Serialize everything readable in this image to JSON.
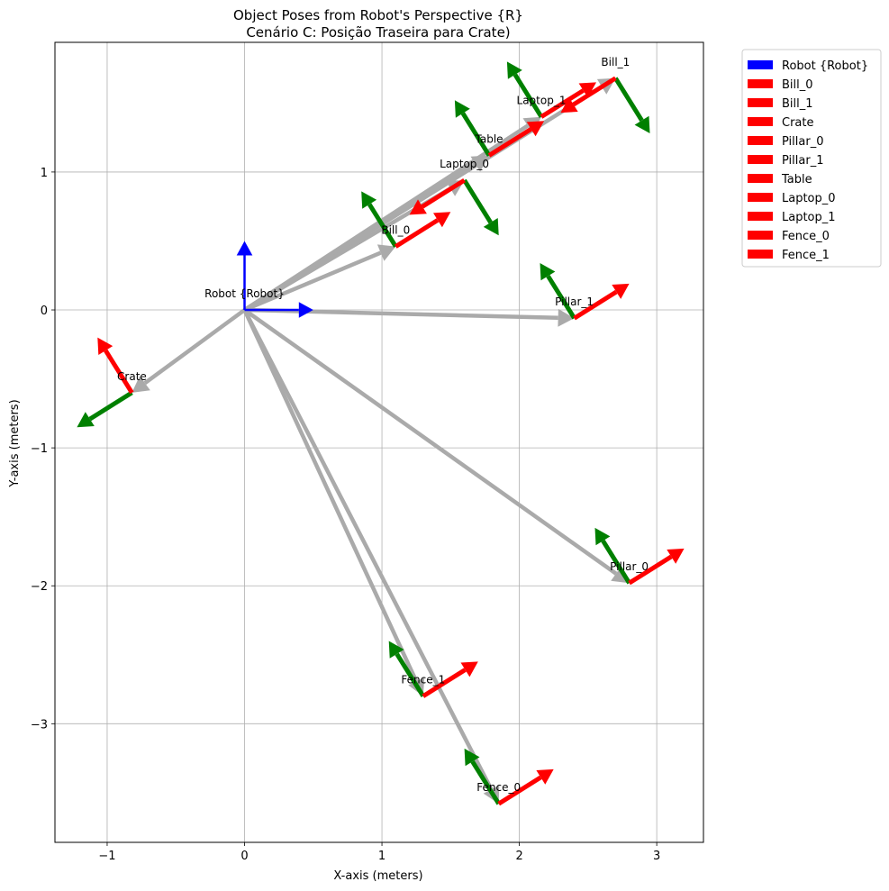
{
  "chart_data": {
    "type": "quiver",
    "title_line1": "Object Poses from Robot's Perspective {R}",
    "title_line2": "Cenário C: Posição Traseira para Crate)",
    "xlabel": "X-axis (meters)",
    "ylabel": "Y-axis (meters)",
    "xlim": [
      -1.38,
      3.34
    ],
    "ylim": [
      -3.86,
      1.94
    ],
    "xticks": [
      -1,
      0,
      1,
      2,
      3
    ],
    "xtick_labels": [
      "−1",
      "0",
      "1",
      "2",
      "3"
    ],
    "yticks": [
      -3,
      -2,
      -1,
      0,
      1
    ],
    "ytick_labels": [
      "−3",
      "−2",
      "−1",
      "0",
      "1"
    ],
    "grid": true,
    "legend_position": "outside-top-right",
    "colors": {
      "robot": "#0000ff",
      "x_axis": "#ff0000",
      "y_axis": "#008000",
      "connector": "#aaaaaa"
    },
    "robot": {
      "name": "Robot {Robot}",
      "label": "Robot {Robot}",
      "x": 0,
      "y": 0,
      "x_dir": [
        0.5,
        0
      ],
      "y_dir": [
        0,
        0.5
      ]
    },
    "objects": [
      {
        "name": "Bill_0",
        "label": "Bill_0",
        "x": 1.1,
        "y": 0.46,
        "x_dir": [
          0.4,
          0.25
        ],
        "y_dir": [
          -0.25,
          0.4
        ]
      },
      {
        "name": "Bill_1",
        "label": "Bill_1",
        "x": 2.7,
        "y": 1.68,
        "x_dir": [
          -0.4,
          -0.25
        ],
        "y_dir": [
          0.25,
          -0.4
        ]
      },
      {
        "name": "Crate",
        "label": "Crate",
        "x": -0.82,
        "y": -0.6,
        "x_dir": [
          -0.25,
          0.4
        ],
        "y_dir": [
          -0.4,
          -0.25
        ]
      },
      {
        "name": "Pillar_0",
        "label": "Pillar_0",
        "x": 2.8,
        "y": -1.98,
        "x_dir": [
          0.4,
          0.25
        ],
        "y_dir": [
          -0.25,
          0.4
        ]
      },
      {
        "name": "Pillar_1",
        "label": "Pillar_1",
        "x": 2.4,
        "y": -0.06,
        "x_dir": [
          0.4,
          0.25
        ],
        "y_dir": [
          -0.25,
          0.4
        ]
      },
      {
        "name": "Table",
        "label": "Table",
        "x": 1.78,
        "y": 1.12,
        "x_dir": [
          0.4,
          0.25
        ],
        "y_dir": [
          -0.25,
          0.4
        ]
      },
      {
        "name": "Laptop_0",
        "label": "Laptop_0",
        "x": 1.6,
        "y": 0.94,
        "x_dir": [
          -0.4,
          -0.25
        ],
        "y_dir": [
          0.25,
          -0.4
        ]
      },
      {
        "name": "Laptop_1",
        "label": "Laptop_1",
        "x": 2.16,
        "y": 1.4,
        "x_dir": [
          0.4,
          0.25
        ],
        "y_dir": [
          -0.25,
          0.4
        ]
      },
      {
        "name": "Fence_0",
        "label": "Fence_0",
        "x": 1.85,
        "y": -3.58,
        "x_dir": [
          0.4,
          0.25
        ],
        "y_dir": [
          -0.25,
          0.4
        ]
      },
      {
        "name": "Fence_1",
        "label": "Fence_1",
        "x": 1.3,
        "y": -2.8,
        "x_dir": [
          0.4,
          0.25
        ],
        "y_dir": [
          -0.25,
          0.4
        ]
      }
    ],
    "legend": [
      "Robot {Robot}",
      "Bill_0",
      "Bill_1",
      "Crate",
      "Pillar_0",
      "Pillar_1",
      "Table",
      "Laptop_0",
      "Laptop_1",
      "Fence_0",
      "Fence_1"
    ]
  }
}
